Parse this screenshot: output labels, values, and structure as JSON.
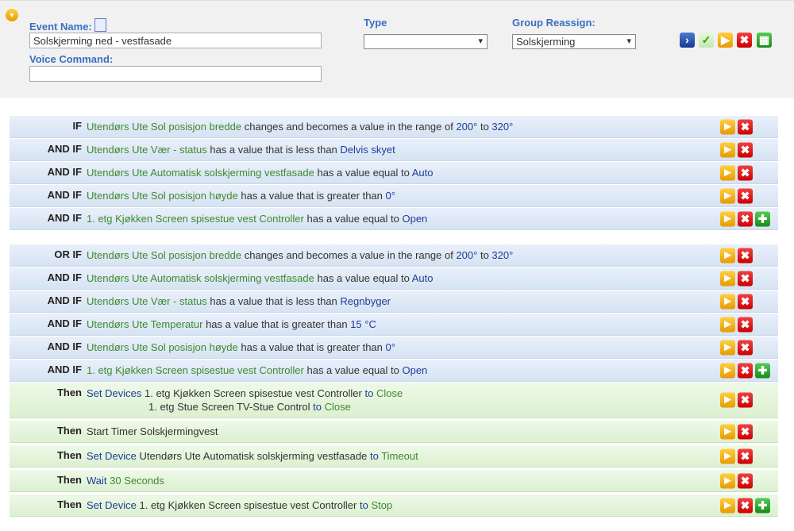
{
  "header": {
    "event_name_label": "Event Name:",
    "event_name": "Solskjerming ned - vestfasade",
    "type_label": "Type",
    "group_label": "Group Reassign:",
    "group_value": "Solskjerming",
    "voice_label": "Voice Command:"
  },
  "groups": [
    {
      "rows": [
        {
          "keyword": "IF",
          "lines": [
            [
              {
                "t": "Utendørs Ute Sol posisjon bredde",
                "c": "green"
              },
              {
                "t": "changes and becomes a value in the range of",
                "c": "dark"
              },
              {
                "t": "200°",
                "c": "blue"
              },
              {
                "t": "to",
                "c": "dark"
              },
              {
                "t": "320°",
                "c": "blue"
              }
            ]
          ]
        },
        {
          "keyword": "AND IF",
          "lines": [
            [
              {
                "t": "Utendørs Ute Vær - status",
                "c": "green"
              },
              {
                "t": "has a value that is less than",
                "c": "dark"
              },
              {
                "t": "Delvis skyet",
                "c": "blue"
              }
            ]
          ]
        },
        {
          "keyword": "AND IF",
          "lines": [
            [
              {
                "t": "Utendørs Ute Automatisk solskjerming vestfasade",
                "c": "green"
              },
              {
                "t": "has a value equal to",
                "c": "dark"
              },
              {
                "t": "Auto",
                "c": "blue"
              }
            ]
          ]
        },
        {
          "keyword": "AND IF",
          "lines": [
            [
              {
                "t": "Utendørs Ute Sol posisjon høyde",
                "c": "green"
              },
              {
                "t": "has a value that is greater than",
                "c": "dark"
              },
              {
                "t": "0°",
                "c": "blue"
              }
            ]
          ]
        },
        {
          "keyword": "AND IF",
          "lines": [
            [
              {
                "t": "1. etg Kjøkken Screen spisestue vest Controller",
                "c": "green"
              },
              {
                "t": "has a value equal to",
                "c": "dark"
              },
              {
                "t": "Open",
                "c": "blue"
              }
            ]
          ]
        }
      ]
    },
    {
      "rows": [
        {
          "keyword": "OR IF",
          "lines": [
            [
              {
                "t": "Utendørs Ute Sol posisjon bredde",
                "c": "green"
              },
              {
                "t": "changes and becomes a value in the range of",
                "c": "dark"
              },
              {
                "t": "200°",
                "c": "blue"
              },
              {
                "t": "to",
                "c": "dark"
              },
              {
                "t": "320°",
                "c": "blue"
              }
            ]
          ]
        },
        {
          "keyword": "AND IF",
          "lines": [
            [
              {
                "t": "Utendørs Ute Automatisk solskjerming vestfasade",
                "c": "green"
              },
              {
                "t": "has a value equal to",
                "c": "dark"
              },
              {
                "t": "Auto",
                "c": "blue"
              }
            ]
          ]
        },
        {
          "keyword": "AND IF",
          "lines": [
            [
              {
                "t": "Utendørs Ute Vær - status",
                "c": "green"
              },
              {
                "t": "has a value that is less than",
                "c": "dark"
              },
              {
                "t": "Regnbyger",
                "c": "blue"
              }
            ]
          ]
        },
        {
          "keyword": "AND IF",
          "lines": [
            [
              {
                "t": "Utendørs Ute Temperatur",
                "c": "green"
              },
              {
                "t": "has a value that is greater than",
                "c": "dark"
              },
              {
                "t": "15 °C",
                "c": "blue"
              }
            ]
          ]
        },
        {
          "keyword": "AND IF",
          "lines": [
            [
              {
                "t": "Utendørs Ute Sol posisjon høyde",
                "c": "green"
              },
              {
                "t": "has a value that is greater than",
                "c": "dark"
              },
              {
                "t": "0°",
                "c": "blue"
              }
            ]
          ]
        },
        {
          "keyword": "AND IF",
          "lines": [
            [
              {
                "t": "1. etg Kjøkken Screen spisestue vest Controller",
                "c": "green"
              },
              {
                "t": "has a value equal to",
                "c": "dark"
              },
              {
                "t": "Open",
                "c": "blue"
              }
            ]
          ]
        }
      ]
    },
    {
      "rows": [
        {
          "keyword": "Then",
          "lines": [
            [
              {
                "t": "Set Devices",
                "c": "blue"
              },
              {
                "t": "1. etg Kjøkken Screen spisestue vest Controller",
                "c": "dark"
              },
              {
                "t": "to",
                "c": "blue"
              },
              {
                "t": "Close",
                "c": "green"
              }
            ],
            [
              {
                "t": "1. etg Stue Screen TV-Stue Control",
                "c": "dark"
              },
              {
                "t": "to",
                "c": "blue"
              },
              {
                "t": "Close",
                "c": "green"
              }
            ]
          ]
        },
        {
          "keyword": "Then",
          "lines": [
            [
              {
                "t": "Start Timer Solskjermingvest",
                "c": "dark"
              }
            ]
          ]
        },
        {
          "keyword": "Then",
          "lines": [
            [
              {
                "t": "Set Device",
                "c": "blue"
              },
              {
                "t": "Utendørs Ute Automatisk solskjerming vestfasade",
                "c": "dark"
              },
              {
                "t": "to",
                "c": "blue"
              },
              {
                "t": "Timeout",
                "c": "green"
              }
            ]
          ]
        },
        {
          "keyword": "Then",
          "lines": [
            [
              {
                "t": "Wait",
                "c": "blue"
              },
              {
                "t": "30 Seconds",
                "c": "green"
              }
            ]
          ]
        },
        {
          "keyword": "Then",
          "lines": [
            [
              {
                "t": "Set Device",
                "c": "blue"
              },
              {
                "t": "1. etg Kjøkken Screen spisestue vest Controller",
                "c": "dark"
              },
              {
                "t": "to",
                "c": "blue"
              },
              {
                "t": "Stop",
                "c": "green"
              }
            ]
          ]
        }
      ]
    }
  ]
}
